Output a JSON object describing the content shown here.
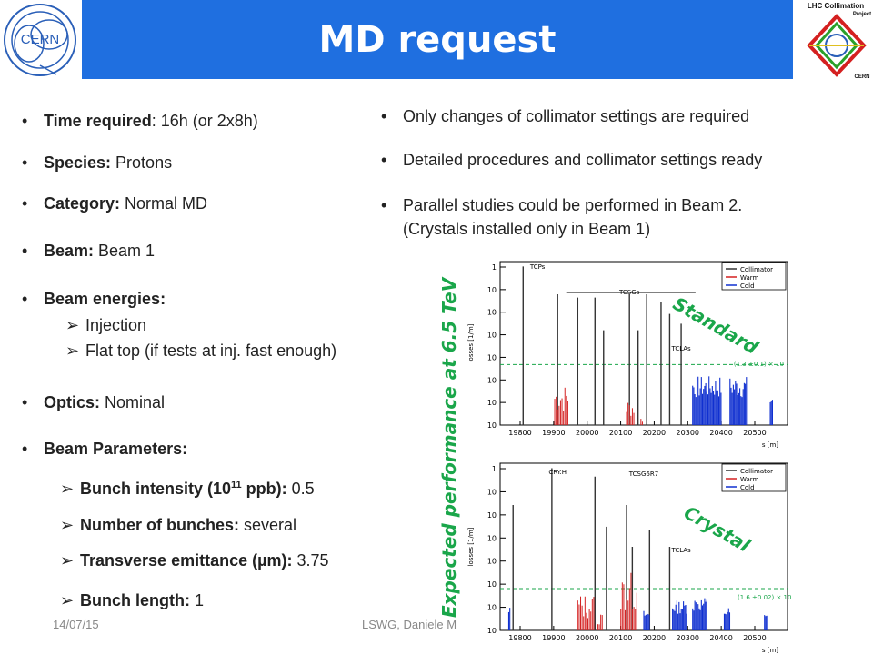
{
  "header": {
    "title": "MD request"
  },
  "logos": {
    "right_text_1": "LHC Collimation",
    "right_text_2": "Project",
    "right_text_3": "CERN",
    "left_text": "CERN"
  },
  "left_bullets": [
    {
      "label": "Time required",
      "value": ": 16h (or 2x8h)"
    },
    {
      "label": "Species:",
      "value": " Protons"
    },
    {
      "label": "Category:",
      "value": " Normal MD"
    },
    {
      "label": "Beam:",
      "value": " Beam 1"
    },
    {
      "label": "Beam energies:",
      "value": ""
    },
    {
      "label": "Optics:",
      "value": " Nominal"
    },
    {
      "label": "Beam Parameters:",
      "value": ""
    }
  ],
  "energy_items": [
    "Injection",
    "Flat top (if tests at inj. fast enough)"
  ],
  "beam_params": [
    {
      "label": "Bunch intensity (10",
      "sup": "11",
      "label2": " ppb):",
      "value": " 0.5"
    },
    {
      "label": "Number of bunches:",
      "value": " several"
    },
    {
      "label": "Transverse emittance (µm):",
      "value": " 3.75"
    },
    {
      "label": "Bunch length:",
      "value": " 1"
    }
  ],
  "right_bullets": [
    "Only changes of collimator settings are required",
    "Detailed procedures and collimator settings ready",
    "Parallel studies could be performed in Beam 2.",
    "(Crystals installed only in Beam 1)"
  ],
  "footer": {
    "date": "14/07/15",
    "author": "LSWG, Daniele M"
  },
  "figure": {
    "vertical_label": "Expected performance at 6.5 TeV",
    "label_top": "Standard",
    "label_bottom": "Crystal"
  },
  "colors": {
    "title_band": "#1f6fe0",
    "green": "#1aa64a",
    "collimator": "#333333",
    "warm": "#d42020",
    "cold": "#1030d0"
  },
  "chart_data": [
    {
      "type": "bar",
      "xlabel": "s [m]",
      "ylabel": "losses [1/m]",
      "x_ticks": [
        "19800",
        "19900",
        "20000",
        "20100",
        "20200",
        "20300",
        "20400",
        "20500"
      ],
      "y_ticks": [
        "1",
        "10",
        "10",
        "10",
        "10",
        "10",
        "10",
        "10"
      ],
      "legend": [
        "Collimator",
        "Warm",
        "Cold"
      ],
      "annotations": [
        "TCPs",
        "TCSGs",
        "TCLAs",
        "(1.3 ±0.1) × 10"
      ]
    },
    {
      "type": "bar",
      "xlabel": "s [m]",
      "ylabel": "losses [1/m]",
      "x_ticks": [
        "19800",
        "19900",
        "20000",
        "20100",
        "20200",
        "20300",
        "20400",
        "20500"
      ],
      "y_ticks": [
        "1",
        "10",
        "10",
        "10",
        "10",
        "10",
        "10",
        "10"
      ],
      "legend": [
        "Collimator",
        "Warm",
        "Cold"
      ],
      "annotations": [
        "CRY.H",
        "TCSG6R7",
        "TCLAs",
        "(1.6 ±0.02) × 10"
      ]
    }
  ]
}
